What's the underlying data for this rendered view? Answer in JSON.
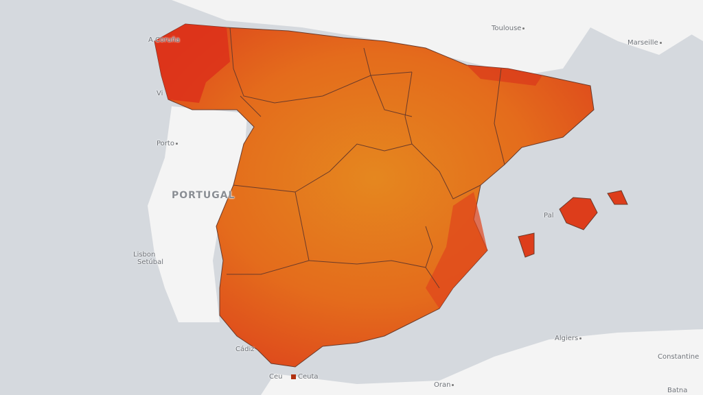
{
  "map": {
    "colors": {
      "sea": "#d5d9de",
      "land": "#f3f3f3",
      "low": "#e2801e",
      "mid": "#e4661c",
      "high": "#d8261c",
      "border": "#6a3a2a"
    },
    "labels": {
      "a_coruna": "A Coruña",
      "vigo": "Vi",
      "porto": "Porto",
      "portugal": "PORTUGAL",
      "lisbon": "Lisbon",
      "setubal": "Setúbal",
      "cadiz": "Cádiz",
      "ceuta_left": "Ceu",
      "ceuta": "Ceuta",
      "toulouse": "Toulouse",
      "marseille": "Marseille",
      "palma": "Pal",
      "algiers": "Algiers",
      "constantine": "Constantine",
      "oran": "Oran",
      "batna": "Batna"
    }
  }
}
